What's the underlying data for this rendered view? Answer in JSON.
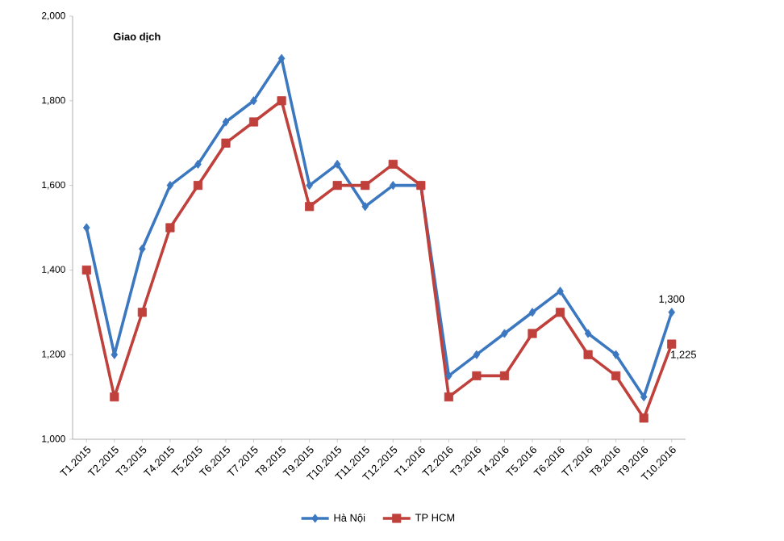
{
  "chart_data": {
    "type": "line",
    "annotations": [
      "Giao dịch"
    ],
    "categories": [
      "T1.2015",
      "T2.2015",
      "T3.2015",
      "T4.2015",
      "T5.2015",
      "T6.2015",
      "T7.2015",
      "T8.2015",
      "T9.2015",
      "T10.2015",
      "T11.2015",
      "T12.2015",
      "T1.2016",
      "T2.2016",
      "T3.2016",
      "T4.2016",
      "T5.2016",
      "T6.2016",
      "T7.2016",
      "T8.2016",
      "T9.2016",
      "T10.2016"
    ],
    "series": [
      {
        "name": "Hà Nội",
        "color": "#3c78c0",
        "marker": "diamond",
        "values": [
          1500,
          1200,
          1450,
          1600,
          1650,
          1750,
          1800,
          1900,
          1600,
          1650,
          1550,
          1600,
          1600,
          1150,
          1200,
          1250,
          1300,
          1350,
          1250,
          1200,
          1100,
          1300
        ],
        "value_labels": [
          null,
          null,
          null,
          null,
          null,
          null,
          null,
          null,
          null,
          null,
          null,
          null,
          null,
          null,
          null,
          null,
          null,
          null,
          null,
          null,
          null,
          "1,300"
        ]
      },
      {
        "name": "TP HCM",
        "color": "#c0403c",
        "marker": "square",
        "values": [
          1400,
          1100,
          1300,
          1500,
          1600,
          1700,
          1750,
          1800,
          1550,
          1600,
          1600,
          1650,
          1600,
          1100,
          1150,
          1150,
          1250,
          1300,
          1200,
          1150,
          1050,
          1225
        ],
        "value_labels": [
          null,
          null,
          null,
          null,
          null,
          null,
          null,
          null,
          null,
          null,
          null,
          null,
          null,
          null,
          null,
          null,
          null,
          null,
          null,
          null,
          null,
          "1,225"
        ]
      }
    ],
    "ylim": [
      1000,
      2000
    ],
    "yticks": [
      {
        "value": 1000,
        "label": "1,000"
      },
      {
        "value": 1200,
        "label": "1,200"
      },
      {
        "value": 1400,
        "label": "1,400"
      },
      {
        "value": 1600,
        "label": "1,600"
      },
      {
        "value": 1800,
        "label": "1,800"
      },
      {
        "value": 2000,
        "label": "2,000"
      }
    ],
    "grid": false,
    "legend": "bottom"
  }
}
